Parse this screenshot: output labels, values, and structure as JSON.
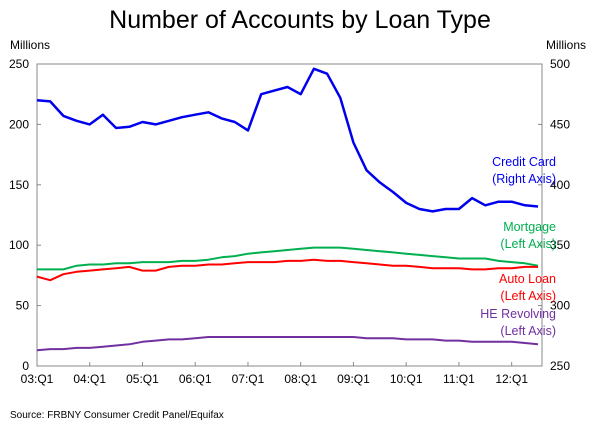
{
  "chart_data": {
    "type": "line",
    "title": "Number of Accounts by Loan Type",
    "ylabel_left": "Millions",
    "ylabel_right": "Millions",
    "source": "Source: FRBNY Consumer Credit Panel/Equifax",
    "ylim_left": [
      0,
      250
    ],
    "ylim_right": [
      250,
      500
    ],
    "yticks_left": [
      "0",
      "50",
      "100",
      "150",
      "200",
      "250"
    ],
    "yticks_right": [
      "250",
      "300",
      "350",
      "400",
      "450",
      "500"
    ],
    "xticks": [
      "03:Q1",
      "04:Q1",
      "05:Q1",
      "06:Q1",
      "07:Q1",
      "08:Q1",
      "09:Q1",
      "10:Q1",
      "11:Q1",
      "12:Q1"
    ],
    "x_range": "2003Q1–2012Q3 (quarterly, 39 points)",
    "series": [
      {
        "name": "Credit Card",
        "label": [
          "Credit Card",
          "(Right Axis)"
        ],
        "axis": "right",
        "color": "#0000ee",
        "values": [
          470,
          469,
          457,
          453,
          450,
          458,
          447,
          448,
          452,
          450,
          453,
          456,
          458,
          460,
          455,
          452,
          445,
          475,
          478,
          481,
          475,
          496,
          492,
          472,
          435,
          412,
          402,
          394,
          385,
          380,
          378,
          380,
          380,
          389,
          383,
          386,
          386,
          383,
          382
        ]
      },
      {
        "name": "Mortgage",
        "label": [
          "Mortgage",
          "(Left Axis)"
        ],
        "axis": "left",
        "color": "#00b050",
        "values": [
          80,
          80,
          80,
          83,
          84,
          84,
          85,
          85,
          86,
          86,
          86,
          87,
          87,
          88,
          90,
          91,
          93,
          94,
          95,
          96,
          97,
          98,
          98,
          98,
          97,
          96,
          95,
          94,
          93,
          92,
          91,
          90,
          89,
          89,
          89,
          87,
          86,
          85,
          83
        ]
      },
      {
        "name": "Auto Loan",
        "label": [
          "Auto Loan",
          "(Left Axis)"
        ],
        "axis": "left",
        "color": "#ff0000",
        "values": [
          74,
          71,
          76,
          78,
          79,
          80,
          81,
          82,
          79,
          79,
          82,
          83,
          83,
          84,
          84,
          85,
          86,
          86,
          86,
          87,
          87,
          88,
          87,
          87,
          86,
          85,
          84,
          83,
          83,
          82,
          81,
          81,
          81,
          80,
          80,
          81,
          81,
          82,
          82
        ]
      },
      {
        "name": "HE Revolving",
        "label": [
          "HE Revolving",
          "(Left Axis)"
        ],
        "axis": "left",
        "color": "#7030a0",
        "values": [
          13,
          14,
          14,
          15,
          15,
          16,
          17,
          18,
          20,
          21,
          22,
          22,
          23,
          24,
          24,
          24,
          24,
          24,
          24,
          24,
          24,
          24,
          24,
          24,
          24,
          23,
          23,
          23,
          22,
          22,
          22,
          21,
          21,
          20,
          20,
          20,
          20,
          19,
          18
        ]
      }
    ]
  }
}
